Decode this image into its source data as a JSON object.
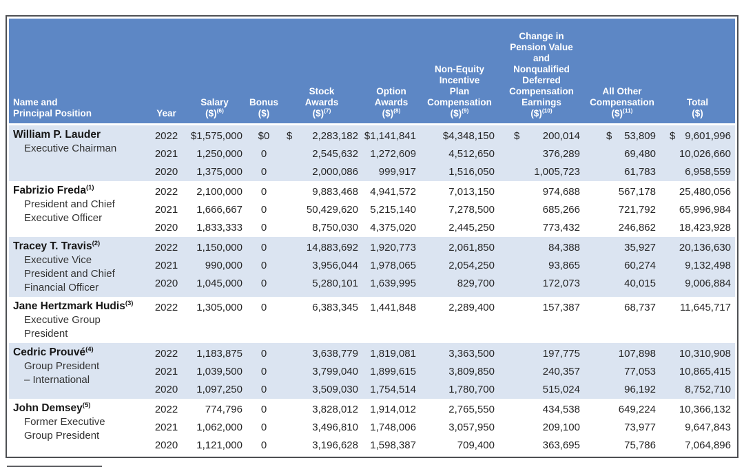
{
  "colors": {
    "header_bg": "#5d87c5",
    "header_text": "#ffffff",
    "shaded_row_bg": "#dbe4f1",
    "border": "#4d4f53",
    "body_text": "#262626"
  },
  "table": {
    "columns": [
      {
        "id": "name",
        "align": "left",
        "lines": [
          "Name and",
          "Principal Position"
        ]
      },
      {
        "id": "year",
        "align": "center",
        "lines": [
          "Year"
        ]
      },
      {
        "id": "salary",
        "align": "right",
        "lines": [
          "Salary"
        ],
        "unit": "($)",
        "sup": "(6)"
      },
      {
        "id": "bonus",
        "align": "center",
        "lines": [
          "Bonus"
        ],
        "unit": "($)"
      },
      {
        "id": "stock",
        "align": "right",
        "lines": [
          "Stock",
          "Awards"
        ],
        "unit": "($)",
        "sup": "(7)"
      },
      {
        "id": "option",
        "align": "right",
        "lines": [
          "Option",
          "Awards"
        ],
        "unit": "($)",
        "sup": "(8)"
      },
      {
        "id": "non_equity",
        "align": "right",
        "lines": [
          "Non-Equity",
          "Incentive",
          "Plan",
          "Compensation"
        ],
        "unit": "($)",
        "sup": "(9)"
      },
      {
        "id": "pension",
        "align": "right",
        "lines": [
          "Change in",
          "Pension Value",
          "and",
          "Nonqualified",
          "Deferred",
          "Compensation",
          "Earnings"
        ],
        "unit": "($)",
        "sup": "(10)"
      },
      {
        "id": "all_other",
        "align": "right",
        "lines": [
          "All Other",
          "Compensation"
        ],
        "unit": "($)",
        "sup": "(11)"
      },
      {
        "id": "total",
        "align": "right",
        "lines": [
          "Total"
        ],
        "unit": "($)"
      }
    ],
    "groups": [
      {
        "name": "William P. Lauder",
        "name_sup": "",
        "positions": [
          "Executive Chairman"
        ],
        "rows": [
          {
            "year": "2022",
            "salary": "$1,575,000",
            "bonus": "$0",
            "stock": "$ 2,283,182",
            "option": "$1,141,841",
            "non_equity": "$4,348,150",
            "pension": "$ 200,014",
            "all_other": "$ 53,809",
            "total": "$ 9,601,996"
          },
          {
            "year": "2021",
            "salary": "1,250,000",
            "bonus": "0",
            "stock": "2,545,632",
            "option": "1,272,609",
            "non_equity": "4,512,650",
            "pension": "376,289",
            "all_other": "69,480",
            "total": "10,026,660"
          },
          {
            "year": "2020",
            "salary": "1,375,000",
            "bonus": "0",
            "stock": "2,000,086",
            "option": "999,917",
            "non_equity": "1,516,050",
            "pension": "1,005,723",
            "all_other": "61,783",
            "total": "6,958,559"
          }
        ]
      },
      {
        "name": "Fabrizio Freda",
        "name_sup": "(1)",
        "positions": [
          "President and Chief",
          "Executive Officer"
        ],
        "rows": [
          {
            "year": "2022",
            "salary": "2,100,000",
            "bonus": "0",
            "stock": "9,883,468",
            "option": "4,941,572",
            "non_equity": "7,013,150",
            "pension": "974,688",
            "all_other": "567,178",
            "total": "25,480,056"
          },
          {
            "year": "2021",
            "salary": "1,666,667",
            "bonus": "0",
            "stock": "50,429,620",
            "option": "5,215,140",
            "non_equity": "7,278,500",
            "pension": "685,266",
            "all_other": "721,792",
            "total": "65,996,984"
          },
          {
            "year": "2020",
            "salary": "1,833,333",
            "bonus": "0",
            "stock": "8,750,030",
            "option": "4,375,020",
            "non_equity": "2,445,250",
            "pension": "773,432",
            "all_other": "246,862",
            "total": "18,423,928"
          }
        ]
      },
      {
        "name": "Tracey T. Travis",
        "name_sup": "(2)",
        "positions": [
          "Executive Vice",
          "President and Chief",
          "Financial Officer"
        ],
        "rows": [
          {
            "year": "2022",
            "salary": "1,150,000",
            "bonus": "0",
            "stock": "14,883,692",
            "option": "1,920,773",
            "non_equity": "2,061,850",
            "pension": "84,388",
            "all_other": "35,927",
            "total": "20,136,630"
          },
          {
            "year": "2021",
            "salary": "990,000",
            "bonus": "0",
            "stock": "3,956,044",
            "option": "1,978,065",
            "non_equity": "2,054,250",
            "pension": "93,865",
            "all_other": "60,274",
            "total": "9,132,498"
          },
          {
            "year": "2020",
            "salary": "1,045,000",
            "bonus": "0",
            "stock": "5,280,101",
            "option": "1,639,995",
            "non_equity": "829,700",
            "pension": "172,073",
            "all_other": "40,015",
            "total": "9,006,884"
          }
        ]
      },
      {
        "name": "Jane Hertzmark Hudis",
        "name_sup": "(3)",
        "positions": [
          "Executive Group",
          "President"
        ],
        "rows": [
          {
            "year": "2022",
            "salary": "1,305,000",
            "bonus": "0",
            "stock": "6,383,345",
            "option": "1,441,848",
            "non_equity": "2,289,400",
            "pension": "157,387",
            "all_other": "68,737",
            "total": "11,645,717"
          }
        ]
      },
      {
        "name": "Cedric Prouvé",
        "name_sup": "(4)",
        "positions": [
          "Group President",
          "– International"
        ],
        "rows": [
          {
            "year": "2022",
            "salary": "1,183,875",
            "bonus": "0",
            "stock": "3,638,779",
            "option": "1,819,081",
            "non_equity": "3,363,500",
            "pension": "197,775",
            "all_other": "107,898",
            "total": "10,310,908"
          },
          {
            "year": "2021",
            "salary": "1,039,500",
            "bonus": "0",
            "stock": "3,799,040",
            "option": "1,899,615",
            "non_equity": "3,809,850",
            "pension": "240,357",
            "all_other": "77,053",
            "total": "10,865,415"
          },
          {
            "year": "2020",
            "salary": "1,097,250",
            "bonus": "0",
            "stock": "3,509,030",
            "option": "1,754,514",
            "non_equity": "1,780,700",
            "pension": "515,024",
            "all_other": "96,192",
            "total": "8,752,710"
          }
        ]
      },
      {
        "name": "John Demsey",
        "name_sup": "(5)",
        "positions": [
          "Former Executive",
          "Group President"
        ],
        "rows": [
          {
            "year": "2022",
            "salary": "774,796",
            "bonus": "0",
            "stock": "3,828,012",
            "option": "1,914,012",
            "non_equity": "2,765,550",
            "pension": "434,538",
            "all_other": "649,224",
            "total": "10,366,132"
          },
          {
            "year": "2021",
            "salary": "1,062,000",
            "bonus": "0",
            "stock": "3,496,810",
            "option": "1,748,006",
            "non_equity": "3,057,950",
            "pension": "209,100",
            "all_other": "73,977",
            "total": "9,647,843"
          },
          {
            "year": "2020",
            "salary": "1,121,000",
            "bonus": "0",
            "stock": "3,196,628",
            "option": "1,598,387",
            "non_equity": "709,400",
            "pension": "363,695",
            "all_other": "75,786",
            "total": "7,064,896"
          }
        ]
      }
    ]
  }
}
